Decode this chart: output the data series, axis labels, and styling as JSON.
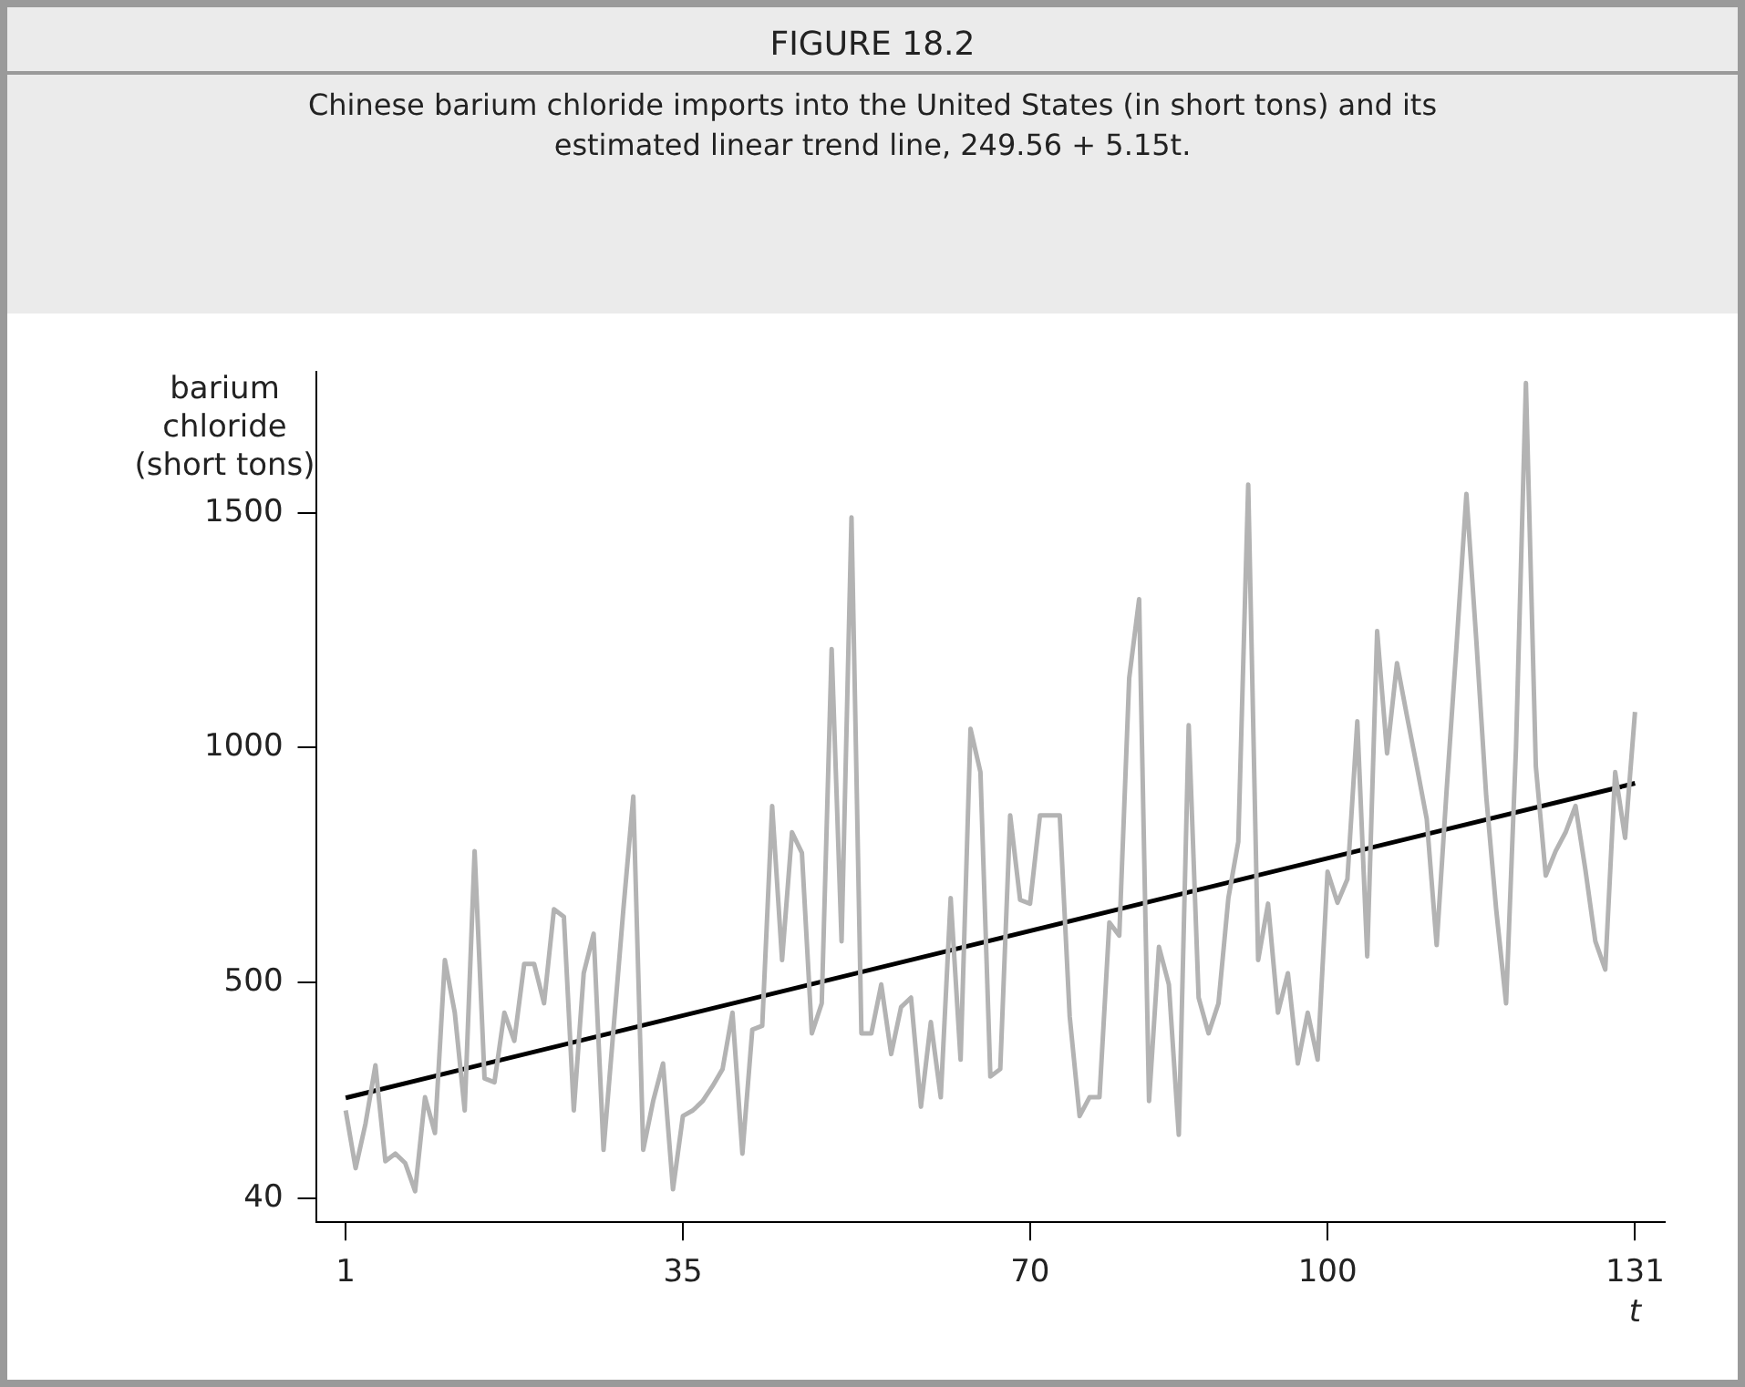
{
  "chart_data": {
    "type": "line",
    "title": "FIGURE 18.2",
    "subtitle": "Chinese barium chloride imports into the United States (in short tons) and its estimated linear trend line, 249.56 + 5.15t.",
    "xlabel": "t",
    "ylabel": "barium chloride (short tons)",
    "marker": "none",
    "x": [
      1,
      2,
      3,
      4,
      5,
      6,
      7,
      8,
      9,
      10,
      11,
      12,
      13,
      14,
      15,
      16,
      17,
      18,
      19,
      20,
      21,
      22,
      23,
      24,
      25,
      26,
      27,
      28,
      29,
      30,
      31,
      32,
      33,
      34,
      35,
      36,
      37,
      38,
      39,
      40,
      41,
      42,
      43,
      44,
      45,
      46,
      47,
      48,
      49,
      50,
      51,
      52,
      53,
      54,
      55,
      56,
      57,
      58,
      59,
      60,
      61,
      62,
      63,
      64,
      65,
      66,
      67,
      68,
      69,
      70,
      71,
      72,
      73,
      74,
      75,
      76,
      77,
      78,
      79,
      80,
      81,
      82,
      83,
      84,
      85,
      86,
      87,
      88,
      89,
      90,
      91,
      92,
      93,
      94,
      95,
      96,
      97,
      98,
      99,
      100,
      101,
      102,
      103,
      104,
      105,
      106,
      107,
      108,
      109,
      110,
      111,
      112,
      113,
      114,
      115,
      116,
      117,
      118,
      119,
      120,
      121,
      122,
      123,
      124,
      125,
      126,
      127,
      128,
      129,
      130,
      131
    ],
    "series": [
      {
        "color": "#b3b3b3",
        "values": [
          228,
          105,
          200,
          324,
          120,
          136,
          116,
          56,
          256,
          180,
          548,
          436,
          228,
          780,
          296,
          288,
          436,
          376,
          540,
          540,
          456,
          656,
          640,
          228,
          520,
          604,
          144,
          400,
          656,
          896,
          144,
          248,
          328,
          60,
          216,
          228,
          248,
          280,
          316,
          436,
          136,
          400,
          408,
          876,
          548,
          820,
          776,
          392,
          456,
          1210,
          588,
          1490,
          392,
          392,
          496,
          348,
          448,
          468,
          236,
          416,
          256,
          680,
          336,
          1040,
          948,
          300,
          316,
          856,
          676,
          668,
          856,
          856,
          856,
          428,
          216,
          256,
          256,
          628,
          600,
          1148,
          1316,
          248,
          576,
          496,
          176,
          1048,
          468,
          392,
          456,
          680,
          800,
          1560,
          548,
          668,
          436,
          520,
          328,
          436,
          336,
          736,
          670,
          720,
          1056,
          556,
          1248,
          988,
          1180,
          1068,
          960,
          848,
          580,
          908,
          1216,
          1540,
          1228,
          896,
          656,
          456,
          1000,
          1776,
          960,
          728,
          780,
          820,
          876,
          740,
          588,
          528,
          948,
          808,
          1076
        ]
      },
      {
        "type": "line",
        "color": "#000000",
        "x": [
          1,
          131
        ],
        "values": [
          254.71,
          924.21
        ]
      }
    ],
    "xlim": [
      -2,
      134
    ],
    "xticks": [
      1,
      35,
      70,
      100,
      131
    ],
    "ylim": [
      -10,
      1800
    ],
    "yticks": [
      40,
      500,
      1000,
      1500
    ]
  }
}
